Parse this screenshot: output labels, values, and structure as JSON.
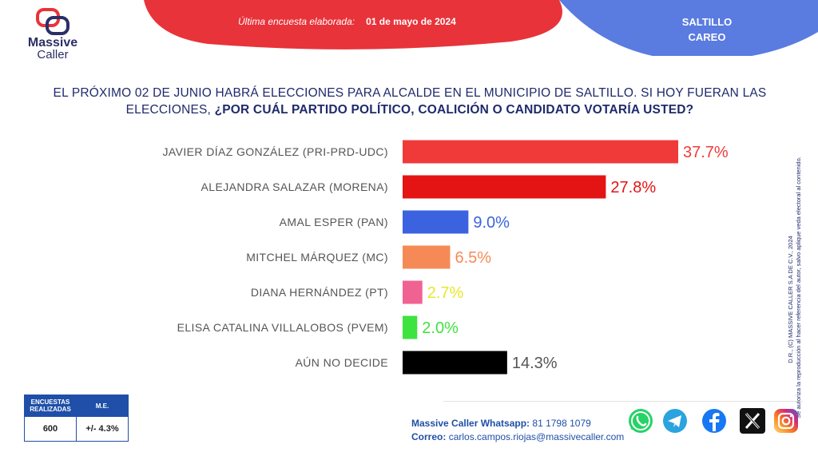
{
  "header": {
    "survey_label": "Última encuesta elaborada:",
    "survey_date": "01 de mayo de 2024",
    "region": "SALTILLO",
    "subregion": "CAREO",
    "brand_line1": "Massive",
    "brand_line2": "Caller"
  },
  "question": {
    "part1": "EL PRÓXIMO 02 DE JUNIO HABRÁ ELECCIONES PARA ALCALDE EN EL MUNICIPIO DE SALTILLO. SI HOY FUERAN LAS ELECCIONES, ",
    "part2": "¿POR CUÁL PARTIDO POLÍTICO, COALICIÓN O CANDIDATO VOTARÍA USTED?"
  },
  "chart_data": {
    "type": "bar",
    "orientation": "horizontal",
    "categories": [
      "JAVIER DÍAZ GONZÁLEZ (PRI-PRD-UDC)",
      "ALEJANDRA SALAZAR (MORENA)",
      "AMAL ESPER (PAN)",
      "MITCHEL MÁRQUEZ (MC)",
      "DIANA HERNÁNDEZ (PT)",
      "ELISA CATALINA VILLALOBOS (PVEM)",
      "AÚN NO DECIDE"
    ],
    "values": [
      37.7,
      27.8,
      9.0,
      6.5,
      2.7,
      2.0,
      14.3
    ],
    "labels": [
      "37.7%",
      "27.8%",
      "9.0%",
      "6.5%",
      "2.7%",
      "2.0%",
      "14.3%"
    ],
    "bar_colors": [
      "#f03a3a",
      "#e41414",
      "#3b63e0",
      "#f58a57",
      "#f06292",
      "#3fe33f",
      "#000000"
    ],
    "label_colors": [
      "#f03a3a",
      "#e41414",
      "#3b63e0",
      "#f58a57",
      "#e8e82a",
      "#3fe33f",
      "#555555"
    ],
    "xlim": [
      0,
      40
    ],
    "grid": false,
    "legend": "none"
  },
  "side_note": {
    "line1": "D.R., (C) MASSIVE CALLER S.A DE C.V., 2024",
    "line2": "Se autoriza la reproducción al hacer referencia del autor, salvo aplique veda electoral al contenido."
  },
  "stats": {
    "sample_label": "ENCUESTAS REALIZADAS",
    "sample_value": "600",
    "moe_label": "M.E.",
    "moe_value": "+/- 4.3%"
  },
  "contact": {
    "whatsapp_label": "Massive Caller Whatsapp:",
    "whatsapp_number": "81 1798 1079",
    "email_label": "Correo:",
    "email": "carlos.campos.riojas@massivecaller.com"
  },
  "social_icons": [
    "whatsapp-icon",
    "telegram-icon",
    "facebook-icon",
    "x-icon",
    "instagram-icon"
  ],
  "colors": {
    "red": "#e8333a",
    "blue": "#5a7be0",
    "navy": "#1f2a6b"
  }
}
